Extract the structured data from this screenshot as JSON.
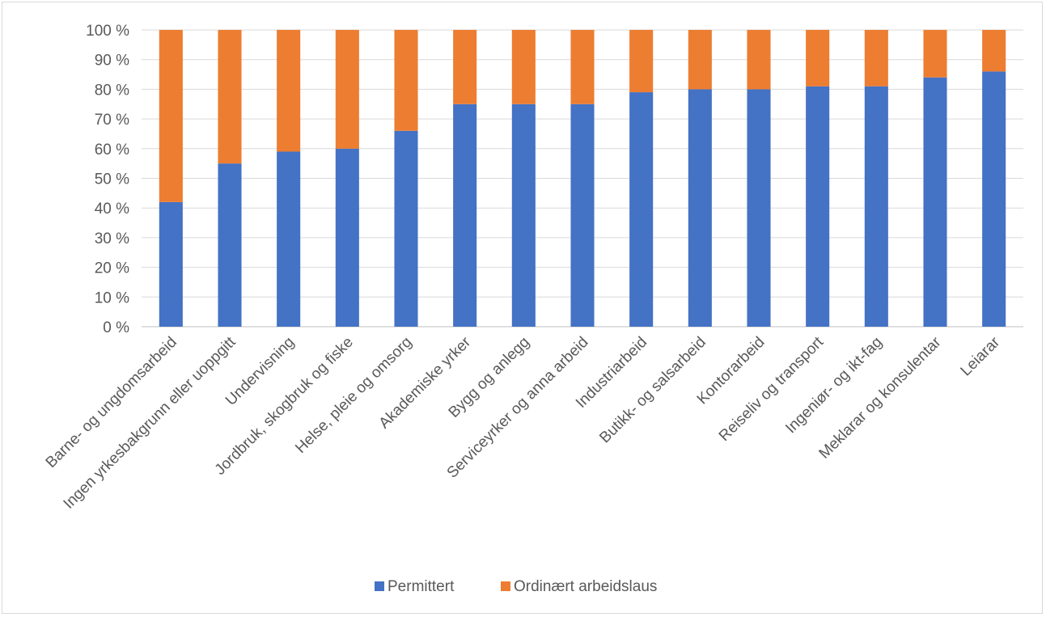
{
  "chart_data": {
    "type": "bar",
    "stacked": true,
    "percent_stacked": true,
    "title": "",
    "xlabel": "",
    "ylabel": "",
    "ylim": [
      0,
      100
    ],
    "y_tick_step": 10,
    "y_tick_suffix": " %",
    "grid": true,
    "legend_position": "bottom",
    "categories": [
      "Barne- og ungdomsarbeid",
      "Ingen yrkesbakgrunn eller uoppgitt",
      "Undervisning",
      "Jordbruk, skogbruk og fiske",
      "Helse, pleie og omsorg",
      "Akademiske yrker",
      "Bygg og anlegg",
      "Serviceyrker og anna arbeid",
      "Industriarbeid",
      "Butikk- og salsarbeid",
      "Kontorarbeid",
      "Reiseliv og transport",
      "Ingeniør- og ikt-fag",
      "Meklarar og konsulentar",
      "Leiarar"
    ],
    "series": [
      {
        "name": "Permittert",
        "color": "#4472c4",
        "values": [
          42,
          55,
          59,
          60,
          66,
          75,
          75,
          75,
          79,
          80,
          80,
          81,
          81,
          84,
          86
        ]
      },
      {
        "name": "Ordinært arbeidslaus",
        "color": "#ed7d31",
        "values": [
          58,
          45,
          41,
          40,
          34,
          25,
          25,
          25,
          21,
          20,
          20,
          19,
          19,
          16,
          14
        ]
      }
    ],
    "axis_color": "#bfbfbf",
    "grid_color": "#d9d9d9"
  }
}
